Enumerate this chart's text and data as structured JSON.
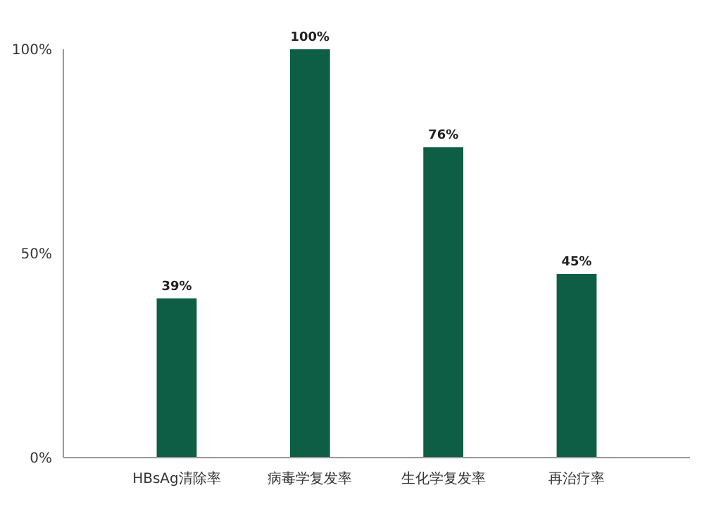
{
  "chart_data": {
    "type": "bar",
    "categories": [
      "HBsAg清除率",
      "病毒学复发率",
      "生化学复发率",
      "再治疗率"
    ],
    "values": [
      39,
      100,
      76,
      45
    ],
    "color": "#0e5e45",
    "value_labels": [
      "39%",
      "100%",
      "76%",
      "45%"
    ],
    "ylim": [
      0,
      100
    ],
    "yticks": [
      {
        "value": 0,
        "label": "0%"
      },
      {
        "value": 50,
        "label": "50%"
      },
      {
        "value": 100,
        "label": "100%"
      }
    ],
    "grid": false
  }
}
